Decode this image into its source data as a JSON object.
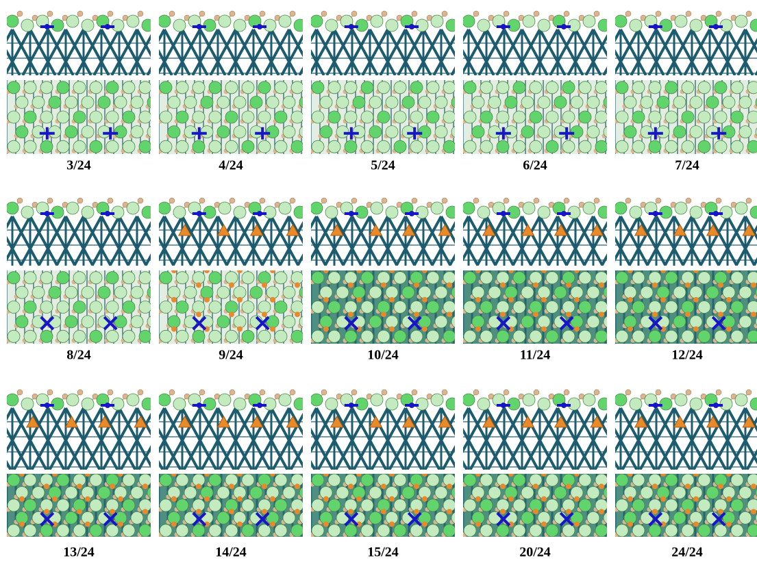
{
  "panels": [
    {
      "label": "3/24"
    },
    {
      "label": "4/24"
    },
    {
      "label": "5/24"
    },
    {
      "label": "6/24"
    },
    {
      "label": "7/24"
    },
    {
      "label": "8/24"
    },
    {
      "label": "9/24"
    },
    {
      "label": "10/24"
    },
    {
      "label": "11/24"
    },
    {
      "label": "12/24"
    },
    {
      "label": "13/24"
    },
    {
      "label": "14/24"
    },
    {
      "label": "15/24"
    },
    {
      "label": "20/24"
    },
    {
      "label": "24/24"
    }
  ]
}
